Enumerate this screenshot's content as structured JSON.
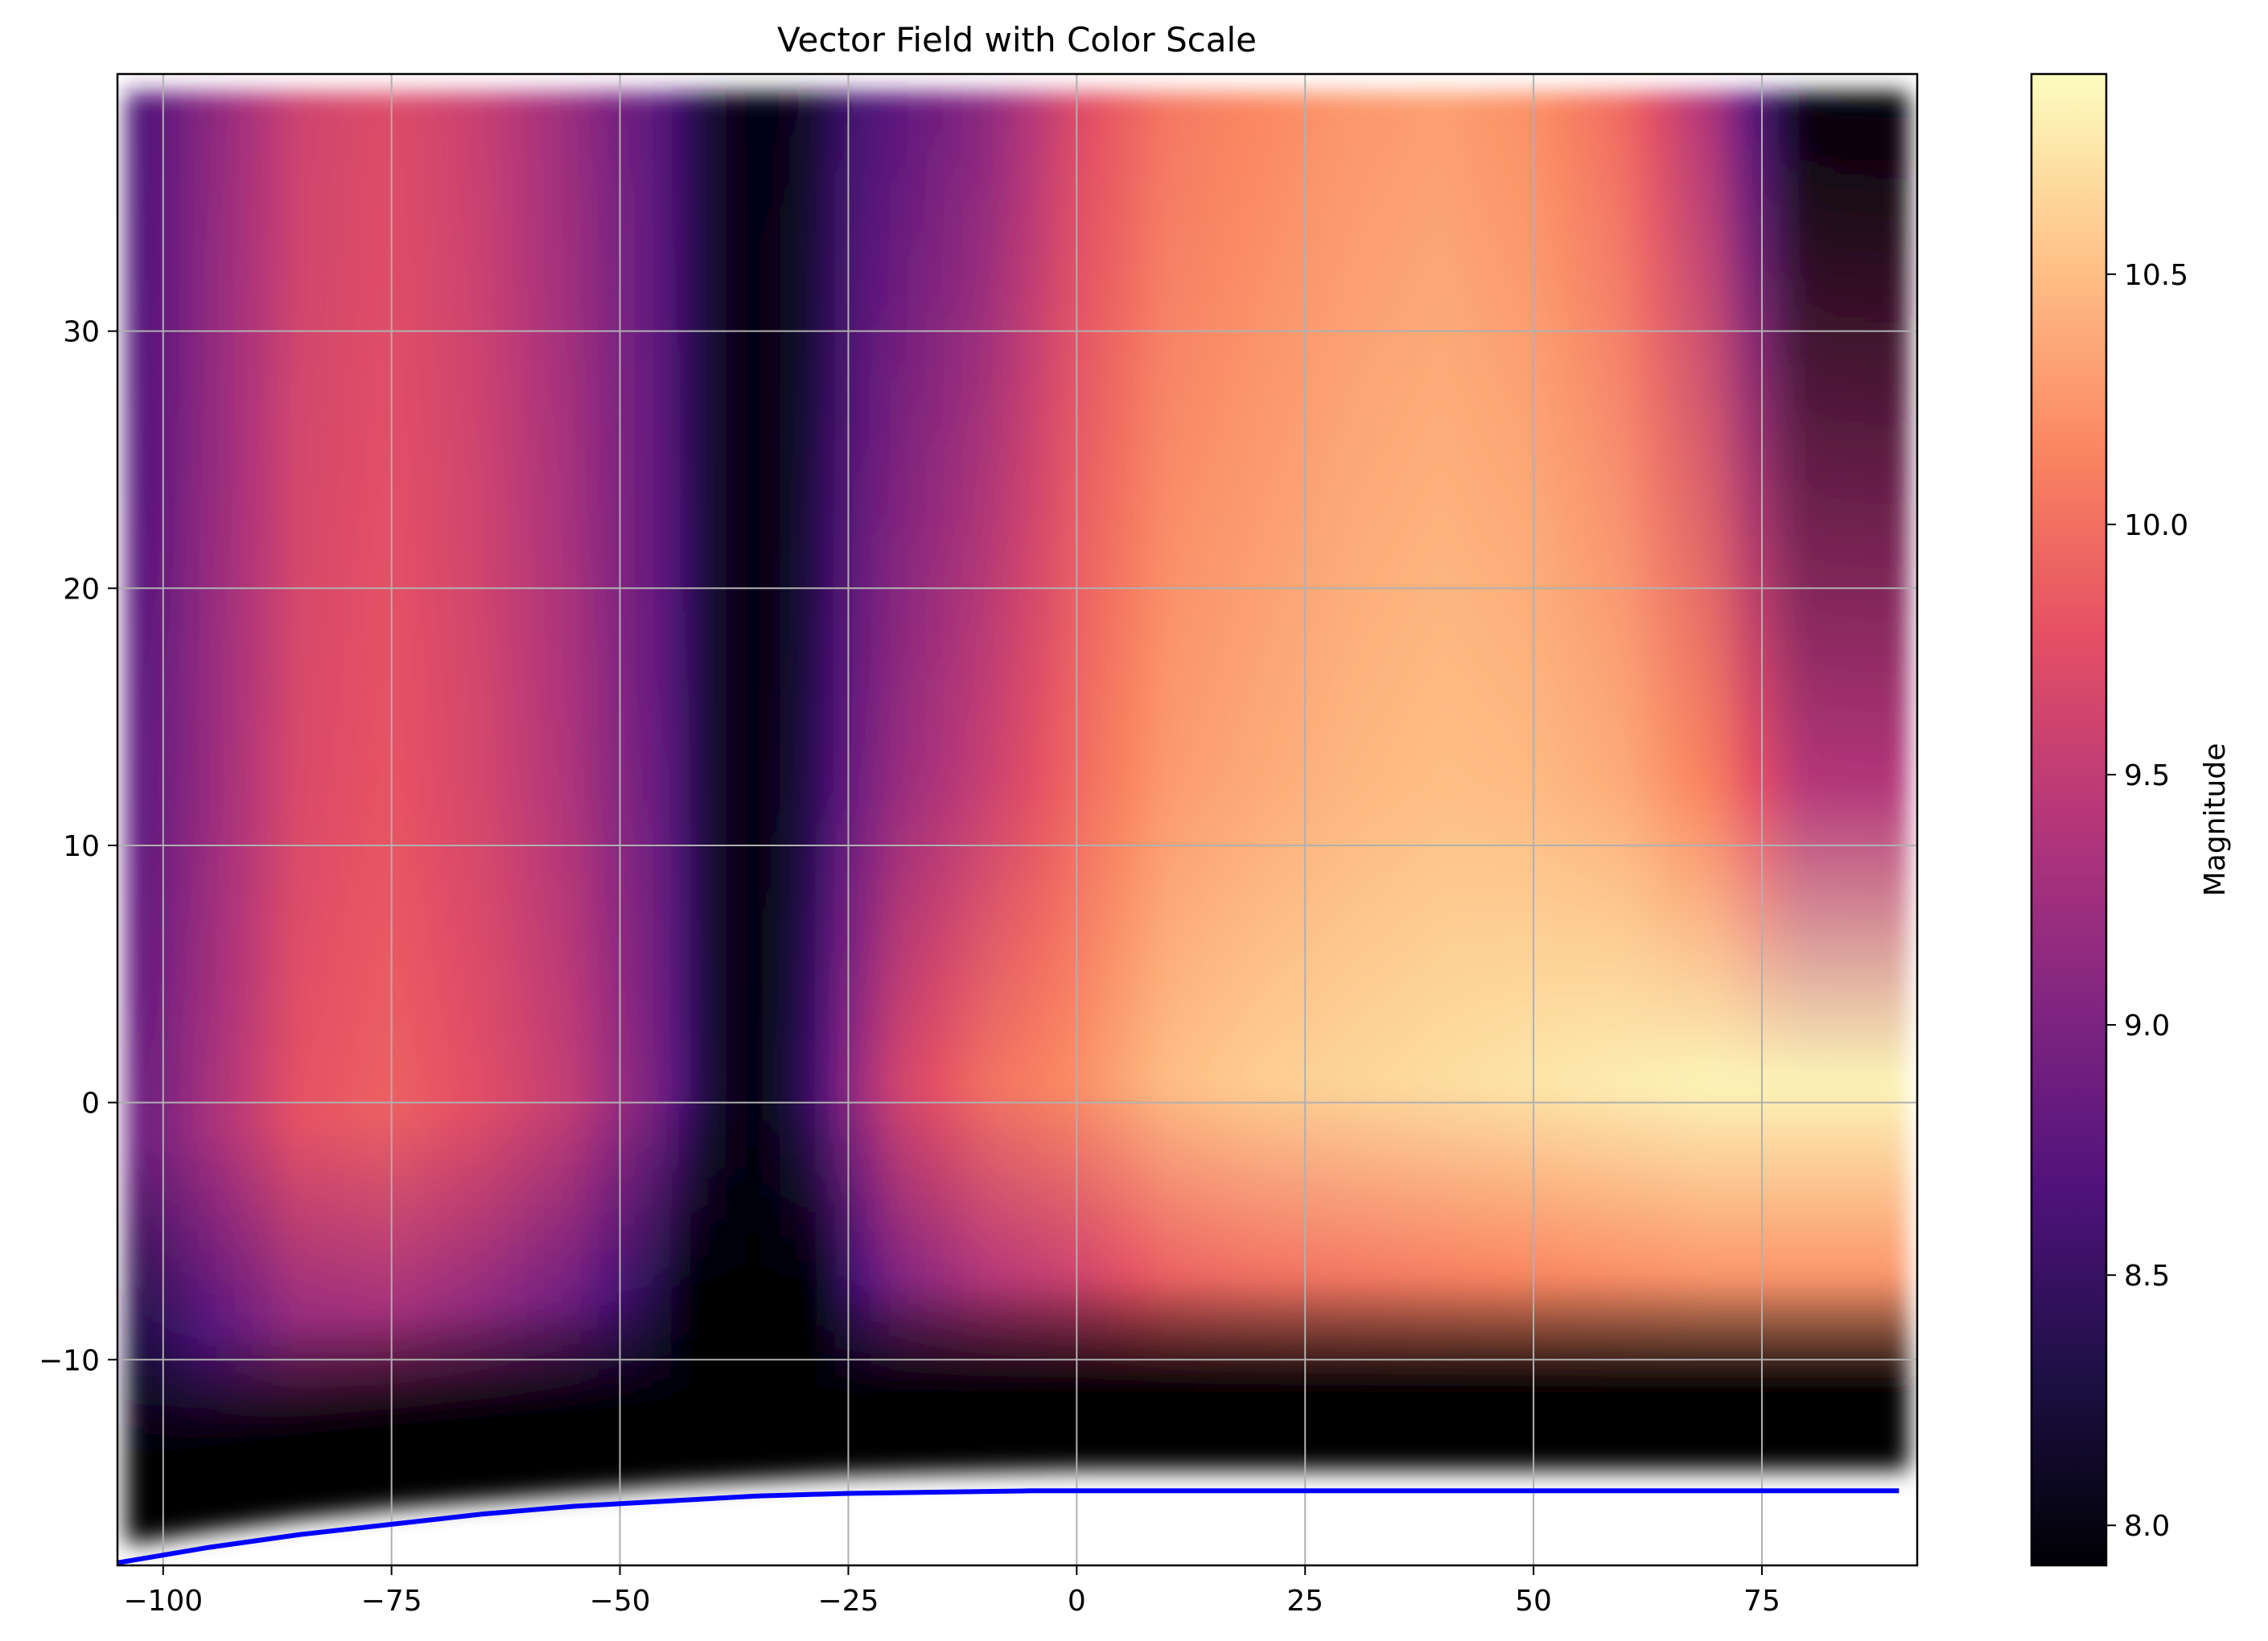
{
  "chart_data": {
    "type": "heatmap",
    "title": "Vector Field with Color Scale",
    "xlabel": "",
    "ylabel": "",
    "xlim": [
      -105,
      92
    ],
    "ylim": [
      -18,
      40
    ],
    "xticks": [
      -100,
      -75,
      -50,
      -25,
      0,
      25,
      50,
      75
    ],
    "xtick_labels": [
      "−100",
      "−75",
      "−50",
      "−25",
      "0",
      "25",
      "50",
      "75"
    ],
    "yticks": [
      -10,
      0,
      10,
      20,
      30
    ],
    "ytick_labels": [
      "−10",
      "0",
      "10",
      "20",
      "30"
    ],
    "grid": true,
    "colormap": "magma",
    "colorbar": {
      "label": "Magnitude",
      "vmin": 7.92,
      "vmax": 10.9,
      "ticks": [
        8.0,
        8.5,
        9.0,
        9.5,
        10.0,
        10.5
      ],
      "tick_labels": [
        "8.0",
        "8.5",
        "9.0",
        "9.5",
        "10.0",
        "10.5"
      ]
    },
    "field_x_range": [
      -104,
      91
    ],
    "field_top_y": 39.3,
    "field_bottom_boundary": {
      "x": [
        -104,
        -95,
        -85,
        -75,
        -65,
        -55,
        -45,
        -35,
        -25,
        -15,
        0,
        20,
        40,
        60,
        80,
        91
      ],
      "y": [
        -17.2,
        -16.7,
        -16.2,
        -15.8,
        -15.5,
        -15.2,
        -14.9,
        -14.7,
        -14.5,
        -14.4,
        -14.3,
        -14.3,
        -14.3,
        -14.3,
        -14.3,
        -14.3
      ]
    },
    "magnitude_profile_by_x": {
      "x": [
        -104,
        -95,
        -85,
        -75,
        -65,
        -55,
        -45,
        -40,
        -35,
        -30,
        -25,
        -20,
        -10,
        0,
        10,
        20,
        30,
        40,
        50,
        60,
        70,
        75,
        80,
        85,
        91
      ],
      "top_magnitude": [
        8.55,
        9.1,
        9.6,
        9.72,
        9.55,
        9.2,
        8.7,
        8.2,
        7.95,
        8.1,
        8.55,
        8.75,
        9.1,
        9.7,
        10.05,
        10.15,
        10.25,
        10.3,
        10.2,
        9.95,
        9.3,
        8.6,
        7.95,
        7.92,
        7.92
      ],
      "mid_magnitude": [
        8.8,
        9.3,
        9.8,
        9.9,
        9.75,
        9.5,
        8.9,
        8.2,
        7.95,
        8.4,
        9.1,
        9.6,
        10.0,
        10.2,
        10.5,
        10.6,
        10.65,
        10.7,
        10.75,
        10.8,
        10.85,
        10.85,
        10.85,
        10.85,
        10.85
      ]
    },
    "line_series": [
      {
        "color": "#0000ff",
        "x": [
          -105,
          -95,
          -85,
          -75,
          -65,
          -55,
          -45,
          -35,
          -25,
          -15,
          -5,
          5,
          20,
          40,
          60,
          80,
          90
        ],
        "y": [
          -17.9,
          -17.3,
          -16.8,
          -16.4,
          -16.0,
          -15.7,
          -15.5,
          -15.3,
          -15.2,
          -15.15,
          -15.1,
          -15.1,
          -15.1,
          -15.1,
          -15.1,
          -15.1,
          -15.1
        ]
      }
    ]
  }
}
